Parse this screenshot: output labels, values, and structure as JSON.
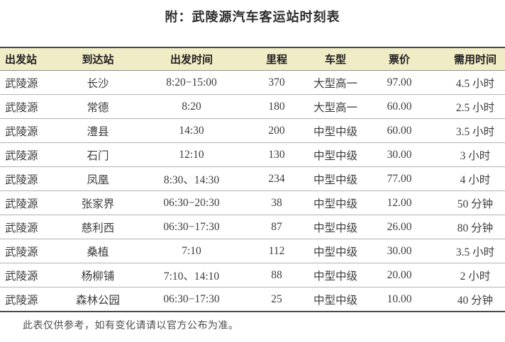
{
  "title": "附：武陵源汽车客运站时刻表",
  "table": {
    "columns": [
      "出发站",
      "到达站",
      "出发时间",
      "里程",
      "车型",
      "票价",
      "需用时间"
    ],
    "rows": [
      [
        "武陵源",
        "长沙",
        "8:20−15:00",
        "370",
        "大型高一",
        "97.00",
        "4.5 小时"
      ],
      [
        "武陵源",
        "常德",
        "8:20",
        "180",
        "大型高一",
        "60.00",
        "2.5 小时"
      ],
      [
        "武陵源",
        "澧县",
        "14:30",
        "200",
        "中型中级",
        "60.00",
        "3.5 小时"
      ],
      [
        "武陵源",
        "石门",
        "12:10",
        "130",
        "中型中级",
        "30.00",
        "3 小时"
      ],
      [
        "武陵源",
        "凤凰",
        "8:30、14:30",
        "234",
        "中型中级",
        "77.00",
        "4 小时"
      ],
      [
        "武陵源",
        "张家界",
        "06:30−20:30",
        "38",
        "中型中级",
        "12.00",
        "50 分钟"
      ],
      [
        "武陵源",
        "慈利西",
        "06:30−17:30",
        "87",
        "中型中级",
        "26.00",
        "80 分钟"
      ],
      [
        "武陵源",
        "桑植",
        "7:10",
        "112",
        "中型中级",
        "30.00",
        "3.5 小时"
      ],
      [
        "武陵源",
        "杨柳铺",
        "7:10、14:10",
        "88",
        "中型中级",
        "20.00",
        "2 小时"
      ],
      [
        "武陵源",
        "森林公园",
        "06:30−17:30",
        "25",
        "中型中级",
        "10.00",
        "40 分钟"
      ]
    ]
  },
  "footer": {
    "note": "此表仅供参考，如有变化请请以官方公布为准。"
  },
  "colors": {
    "header_background": "#f0ecc6",
    "rule_dark": "#4a4a4a",
    "rule_light": "#b3b3b3",
    "body_text": "#3c3c3c"
  }
}
